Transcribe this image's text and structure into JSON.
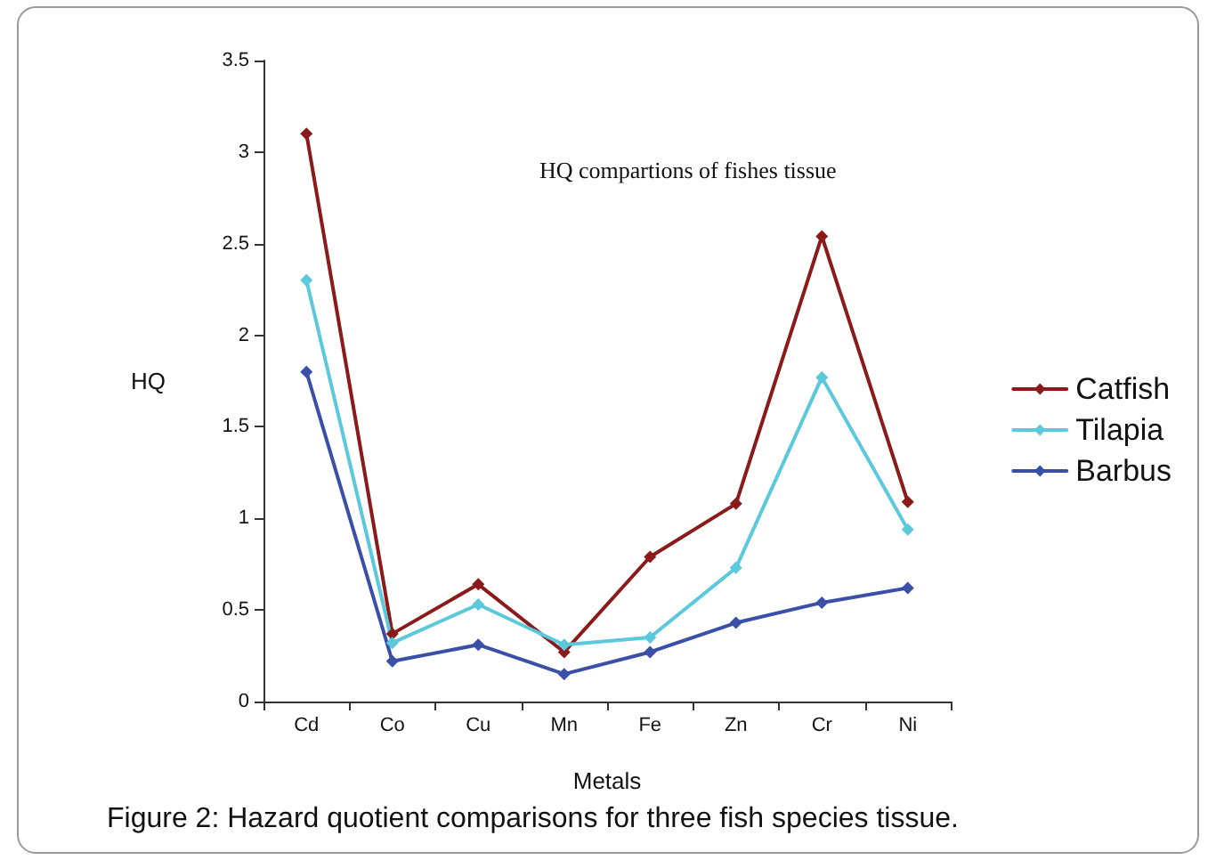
{
  "chart_data": {
    "type": "line",
    "title": "HQ compartions of fishes tissue",
    "xlabel": "Metals",
    "ylabel": "HQ",
    "categories": [
      "Cd",
      "Co",
      "Cu",
      "Mn",
      "Fe",
      "Zn",
      "Cr",
      "Ni"
    ],
    "series": [
      {
        "name": "Catfish",
        "color": "#8b1a1a",
        "values": [
          3.1,
          0.37,
          0.64,
          0.27,
          0.79,
          1.08,
          2.54,
          1.09
        ]
      },
      {
        "name": "Tilapia",
        "color": "#5bc8dc",
        "values": [
          2.3,
          0.32,
          0.53,
          0.31,
          0.35,
          0.73,
          1.77,
          0.94
        ]
      },
      {
        "name": "Barbus",
        "color": "#3a4fa8",
        "values": [
          1.8,
          0.22,
          0.31,
          0.15,
          0.27,
          0.43,
          0.54,
          0.62
        ]
      }
    ],
    "ylim": [
      0,
      3.5
    ],
    "yticks": [
      0,
      0.5,
      1,
      1.5,
      2,
      2.5,
      3,
      3.5
    ],
    "grid": false,
    "legend": "right",
    "marker": "diamond",
    "line_style": "solid",
    "annotations": [
      "Figure 2: Hazard quotient comparisons for three fish species tissue."
    ]
  }
}
